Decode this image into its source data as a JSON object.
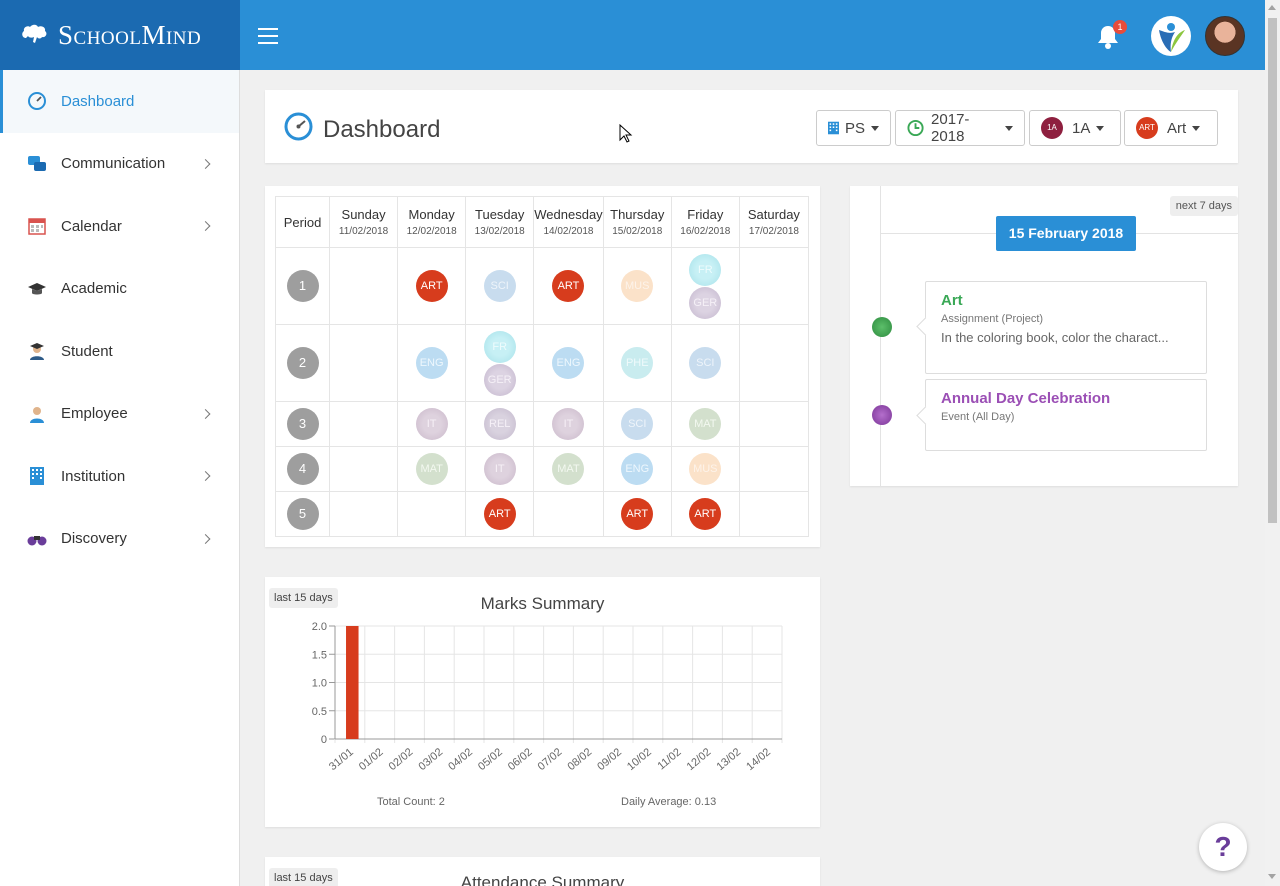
{
  "brand": {
    "name": "SchoolMind"
  },
  "topbar": {
    "notification_count": "1"
  },
  "sidebar": {
    "items": [
      {
        "label": "Dashboard",
        "icon": "speedometer-icon",
        "active": true,
        "chevron": false
      },
      {
        "label": "Communication",
        "icon": "chat-bubbles-icon",
        "active": false,
        "chevron": true
      },
      {
        "label": "Calendar",
        "icon": "calendar-icon",
        "active": false,
        "chevron": true
      },
      {
        "label": "Academic",
        "icon": "graduation-cap-icon",
        "active": false,
        "chevron": false
      },
      {
        "label": "Student",
        "icon": "student-icon",
        "active": false,
        "chevron": false
      },
      {
        "label": "Employee",
        "icon": "employee-icon",
        "active": false,
        "chevron": true
      },
      {
        "label": "Institution",
        "icon": "building-icon",
        "active": false,
        "chevron": true
      },
      {
        "label": "Discovery",
        "icon": "binoculars-icon",
        "active": false,
        "chevron": true
      }
    ]
  },
  "header": {
    "title": "Dashboard",
    "filters": {
      "school": "PS",
      "year": "2017-2018",
      "class": "1A",
      "class_badge": "1A",
      "subject": "Art",
      "subject_badge": "ART"
    }
  },
  "timetable": {
    "period_header": "Period",
    "days": [
      {
        "name": "Sunday",
        "date": "11/02/2018"
      },
      {
        "name": "Monday",
        "date": "12/02/2018"
      },
      {
        "name": "Tuesday",
        "date": "13/02/2018"
      },
      {
        "name": "Wednesday",
        "date": "14/02/2018"
      },
      {
        "name": "Thursday",
        "date": "15/02/2018"
      },
      {
        "name": "Friday",
        "date": "16/02/2018"
      },
      {
        "name": "Saturday",
        "date": "17/02/2018"
      }
    ],
    "rows": [
      {
        "period": "1",
        "cells": [
          [],
          [
            "ART"
          ],
          [
            "SCI"
          ],
          [
            "ART"
          ],
          [
            "MUS"
          ],
          [
            "FR",
            "GER"
          ],
          []
        ]
      },
      {
        "period": "2",
        "cells": [
          [],
          [
            "ENG"
          ],
          [
            "FR",
            "GER"
          ],
          [
            "ENG"
          ],
          [
            "PHE"
          ],
          [
            "SCI"
          ],
          []
        ]
      },
      {
        "period": "3",
        "cells": [
          [],
          [
            "IT"
          ],
          [
            "REL"
          ],
          [
            "IT"
          ],
          [
            "SCI"
          ],
          [
            "MAT"
          ],
          []
        ]
      },
      {
        "period": "4",
        "cells": [
          [],
          [
            "MAT"
          ],
          [
            "IT"
          ],
          [
            "MAT"
          ],
          [
            "ENG"
          ],
          [
            "MUS"
          ],
          []
        ]
      },
      {
        "period": "5",
        "cells": [
          [],
          [],
          [
            "ART"
          ],
          [],
          [
            "ART"
          ],
          [
            "ART"
          ],
          []
        ]
      }
    ]
  },
  "events": {
    "range_tag": "next 7 days",
    "date": "15 February 2018",
    "items": [
      {
        "title": "Art",
        "subtitle": "Assignment (Project)",
        "description": "In the coloring book, color the charact...",
        "color": "#3aa856"
      },
      {
        "title": "Annual Day Celebration",
        "subtitle": "Event (All Day)",
        "description": "",
        "color": "#9b4fb5"
      }
    ]
  },
  "marks_summary": {
    "range_tag": "last 15 days",
    "total_count": "Total Count: 2",
    "daily_average": "Daily Average: 0.13"
  },
  "attendance_summary": {
    "range_tag": "last 15 days",
    "title": "Attendance Summary"
  },
  "chart_data": {
    "type": "bar",
    "title": "Marks Summary",
    "categories": [
      "31/01",
      "01/02",
      "02/02",
      "03/02",
      "04/02",
      "05/02",
      "06/02",
      "07/02",
      "08/02",
      "09/02",
      "10/02",
      "11/02",
      "12/02",
      "13/02",
      "14/02"
    ],
    "values": [
      2,
      0,
      0,
      0,
      0,
      0,
      0,
      0,
      0,
      0,
      0,
      0,
      0,
      0,
      0
    ],
    "ylim": [
      0,
      2.0
    ],
    "yticks": [
      "0",
      "0.5",
      "1.0",
      "1.5",
      "2.0"
    ],
    "xlabel": "",
    "ylabel": "",
    "grid": true,
    "color": "#d73c1d"
  },
  "help": {
    "label": "?"
  }
}
